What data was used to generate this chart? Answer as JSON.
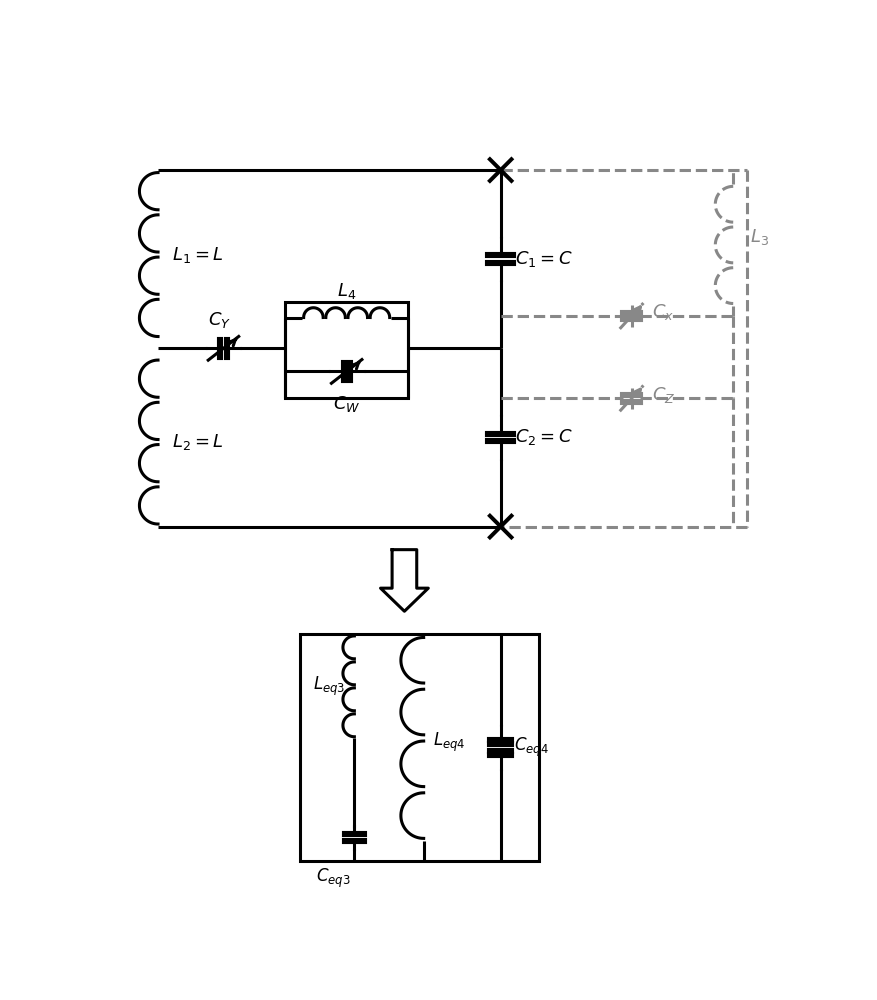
{
  "bg_color": "#ffffff",
  "line_color": "#000000",
  "dashed_color": "#888888",
  "fig_width": 8.77,
  "fig_height": 10.0,
  "lw": 2.2,
  "lw_plate": 3.5
}
